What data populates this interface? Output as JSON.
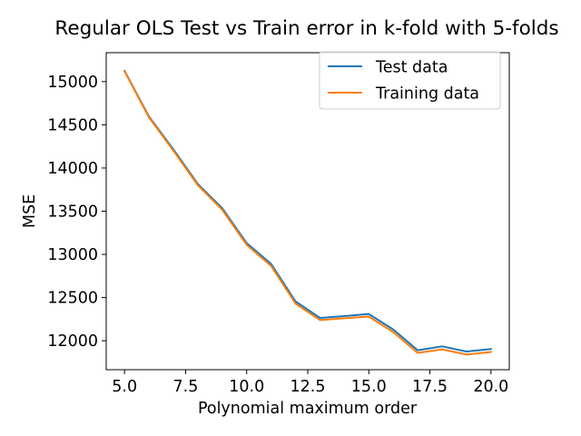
{
  "chart_data": {
    "type": "line",
    "title": "Regular OLS Test vs Train error in k-fold with 5-folds",
    "xlabel": "Polynomial maximum order",
    "ylabel": "MSE",
    "xlim": [
      4.25,
      20.75
    ],
    "ylim": [
      11665,
      15335
    ],
    "x_ticks": [
      5.0,
      7.5,
      10.0,
      12.5,
      15.0,
      17.5,
      20.0
    ],
    "x_tick_labels": [
      "5.0",
      "7.5",
      "10.0",
      "12.5",
      "15.0",
      "17.5",
      "20.0"
    ],
    "y_ticks": [
      12000,
      12500,
      13000,
      13500,
      14000,
      14500,
      15000
    ],
    "y_tick_labels": [
      "12000",
      "12500",
      "13000",
      "13500",
      "14000",
      "14500",
      "15000"
    ],
    "grid": false,
    "legend_position": "top-right",
    "x": [
      5,
      6,
      7,
      8,
      9,
      10,
      11,
      12,
      13,
      14,
      15,
      16,
      17,
      18,
      19,
      20
    ],
    "series": [
      {
        "name": "Test data",
        "color": "#1f77b4",
        "values": [
          15125,
          14595,
          14215,
          13815,
          13535,
          13130,
          12890,
          12455,
          12265,
          12285,
          12310,
          12130,
          11890,
          11935,
          11875,
          11905
        ]
      },
      {
        "name": "Training data",
        "color": "#ff7f0e",
        "values": [
          15120,
          14585,
          14200,
          13800,
          13515,
          13110,
          12865,
          12430,
          12240,
          12260,
          12280,
          12100,
          11860,
          11900,
          11840,
          11870
        ]
      }
    ]
  }
}
